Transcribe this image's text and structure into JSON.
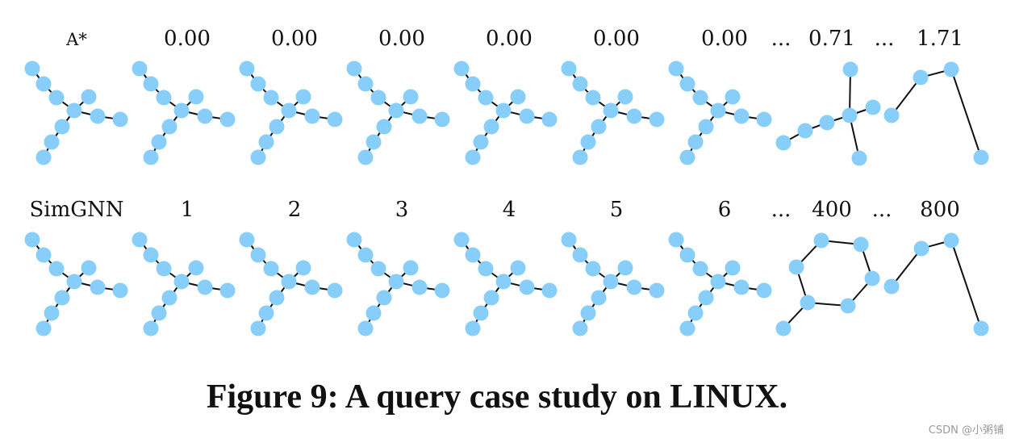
{
  "figure": {
    "caption": "Figure 9: A query case study on LINUX.",
    "watermark": "CSDN @小粥铺",
    "node_color": "#87CEFA",
    "edge_color": "#111111"
  },
  "rows": [
    {
      "row_label": "A*",
      "labels": [
        "0.00",
        "0.00",
        "0.00",
        "0.00",
        "0.00",
        "0.00",
        "0.71",
        "1.71"
      ],
      "ellipses": [
        "...",
        "..."
      ]
    },
    {
      "row_label": "SimGNN",
      "labels": [
        "1",
        "2",
        "3",
        "4",
        "5",
        "6",
        "400",
        "800"
      ],
      "ellipses": [
        "...",
        "..."
      ]
    }
  ]
}
